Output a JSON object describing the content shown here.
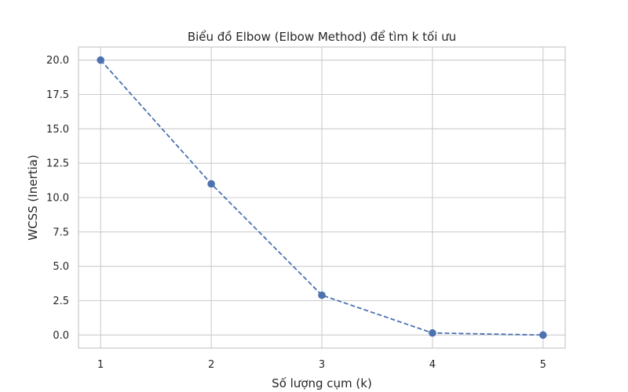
{
  "chart_data": {
    "type": "line",
    "title": "Biểu đồ Elbow (Elbow Method) để tìm k tối ưu",
    "xlabel": "Số lượng cụm (k)",
    "ylabel": "WCSS (Inertia)",
    "x": [
      1,
      2,
      3,
      4,
      5
    ],
    "xticks": [
      "1",
      "2",
      "3",
      "4",
      "5"
    ],
    "yticks": [
      "0.0",
      "2.5",
      "5.0",
      "7.5",
      "10.0",
      "12.5",
      "15.0",
      "17.5",
      "20.0"
    ],
    "xlim": [
      0.8,
      5.2
    ],
    "ylim": [
      -0.95,
      20.95
    ],
    "series": [
      {
        "values": [
          20.0,
          11.0,
          2.9,
          0.15,
          0.0
        ],
        "color": "#4c72b0",
        "linestyle": "dashed",
        "marker": "circle"
      }
    ],
    "grid": true
  }
}
